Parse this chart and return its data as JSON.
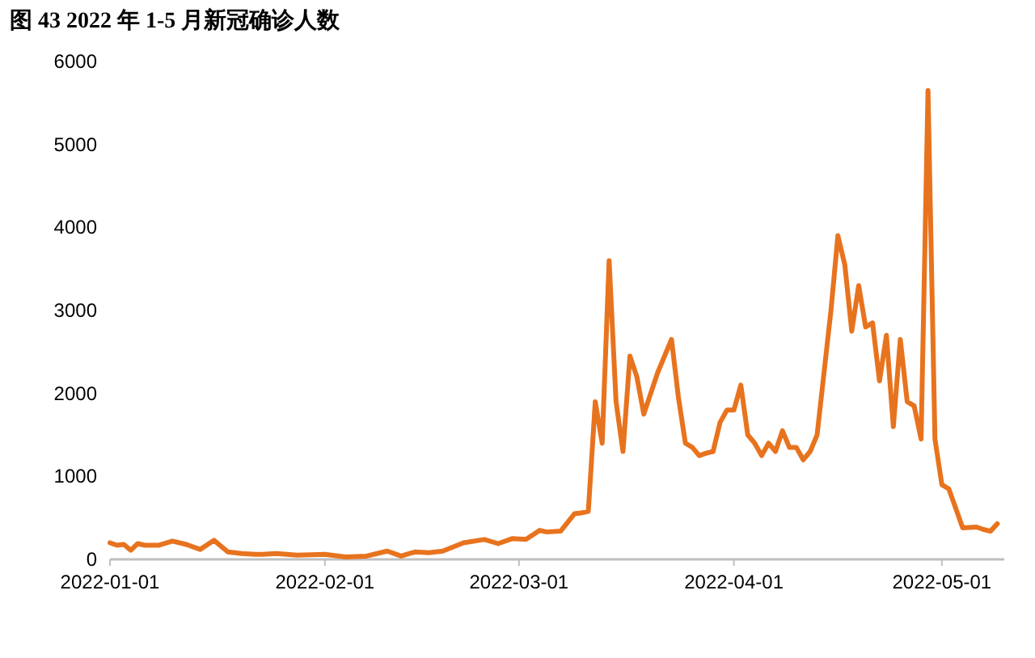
{
  "chart_data": {
    "type": "line",
    "title": "图 43 2022 年 1-5 月新冠确诊人数",
    "x": [
      "2022-01-01",
      "2022-01-02",
      "2022-01-03",
      "2022-01-04",
      "2022-01-05",
      "2022-01-06",
      "2022-01-08",
      "2022-01-10",
      "2022-01-12",
      "2022-01-14",
      "2022-01-16",
      "2022-01-18",
      "2022-01-20",
      "2022-01-22",
      "2022-01-23",
      "2022-01-25",
      "2022-01-28",
      "2022-02-01",
      "2022-02-04",
      "2022-02-07",
      "2022-02-10",
      "2022-02-12",
      "2022-02-14",
      "2022-02-16",
      "2022-02-18",
      "2022-02-21",
      "2022-02-24",
      "2022-02-26",
      "2022-02-28",
      "2022-03-02",
      "2022-03-04",
      "2022-03-05",
      "2022-03-07",
      "2022-03-09",
      "2022-03-10",
      "2022-03-11",
      "2022-03-12",
      "2022-03-13",
      "2022-03-14",
      "2022-03-15",
      "2022-03-16",
      "2022-03-17",
      "2022-03-18",
      "2022-03-19",
      "2022-03-21",
      "2022-03-23",
      "2022-03-24",
      "2022-03-25",
      "2022-03-26",
      "2022-03-27",
      "2022-03-28",
      "2022-03-29",
      "2022-03-30",
      "2022-03-31",
      "2022-04-01",
      "2022-04-02",
      "2022-04-03",
      "2022-04-04",
      "2022-04-05",
      "2022-04-06",
      "2022-04-07",
      "2022-04-08",
      "2022-04-09",
      "2022-04-10",
      "2022-04-11",
      "2022-04-12",
      "2022-04-13",
      "2022-04-15",
      "2022-04-16",
      "2022-04-17",
      "2022-04-18",
      "2022-04-19",
      "2022-04-20",
      "2022-04-21",
      "2022-04-22",
      "2022-04-23",
      "2022-04-24",
      "2022-04-25",
      "2022-04-26",
      "2022-04-27",
      "2022-04-28",
      "2022-04-29",
      "2022-04-30",
      "2022-05-01",
      "2022-05-02",
      "2022-05-04",
      "2022-05-06",
      "2022-05-07",
      "2022-05-08",
      "2022-05-09"
    ],
    "series": [
      {
        "color": "#e8731e",
        "values": [
          200,
          170,
          180,
          110,
          190,
          170,
          170,
          220,
          180,
          120,
          230,
          90,
          70,
          60,
          60,
          70,
          50,
          60,
          30,
          40,
          100,
          40,
          90,
          80,
          100,
          200,
          240,
          190,
          250,
          240,
          350,
          330,
          340,
          550,
          560,
          580,
          1900,
          1400,
          3600,
          1900,
          1300,
          2450,
          2200,
          1750,
          2250,
          2650,
          1950,
          1400,
          1350,
          1250,
          1280,
          1300,
          1650,
          1800,
          1800,
          2100,
          1500,
          1400,
          1250,
          1400,
          1300,
          1550,
          1350,
          1350,
          1200,
          1300,
          1500,
          3000,
          3900,
          3550,
          2750,
          3300,
          2800,
          2850,
          2150,
          2700,
          1600,
          2650,
          1900,
          1850,
          1450,
          5650,
          1450,
          900,
          850,
          380,
          390,
          360,
          340,
          430
        ]
      }
    ],
    "xlim": [
      "2022-01-01",
      "2022-05-10"
    ],
    "xticks": [
      {
        "value": "2022-01-01",
        "label": "2022-01-01"
      },
      {
        "value": "2022-02-01",
        "label": "2022-02-01"
      },
      {
        "value": "2022-03-01",
        "label": "2022-03-01"
      },
      {
        "value": "2022-04-01",
        "label": "2022-04-01"
      },
      {
        "value": "2022-05-01",
        "label": "2022-05-01"
      }
    ],
    "ylim": [
      0,
      6000
    ],
    "yticks": [
      0,
      1000,
      2000,
      3000,
      4000,
      5000,
      6000
    ],
    "grid": false,
    "marker": "none",
    "line_style": "solid"
  }
}
